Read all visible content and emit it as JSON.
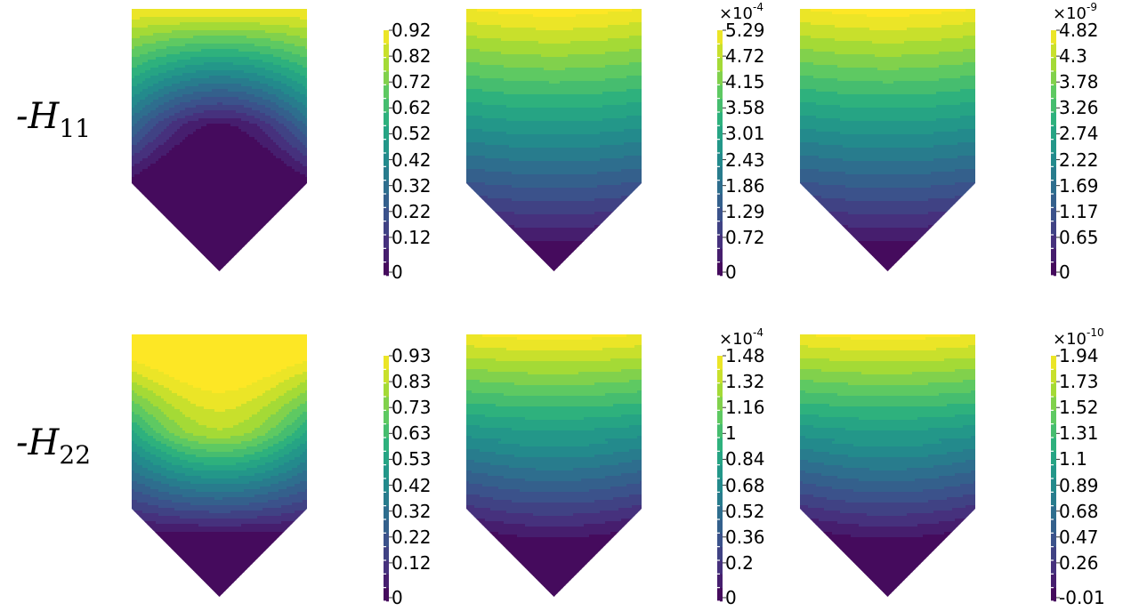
{
  "rows": [
    {
      "prefix": "-",
      "symbol": "H",
      "subscript": "11"
    },
    {
      "prefix": "-",
      "symbol": "H",
      "subscript": "22"
    }
  ],
  "colormap_colors": [
    "#440154",
    "#472d7b",
    "#3b528b",
    "#2c728e",
    "#21918c",
    "#28ae80",
    "#5ec962",
    "#addc30",
    "#fde725"
  ],
  "chart_data": [
    {
      "type": "heatmap",
      "row": 0,
      "col": 0,
      "exponent": "",
      "colorbar_ticks": [
        "0",
        "0.12",
        "0.22",
        "0.32",
        "0.42",
        "0.52",
        "0.62",
        "0.72",
        "0.82",
        "0.92"
      ],
      "range": [
        0,
        1.0
      ],
      "pattern": "dip"
    },
    {
      "type": "heatmap",
      "row": 0,
      "col": 1,
      "exponent": "-4",
      "colorbar_ticks": [
        "0",
        "0.72",
        "1.29",
        "1.86",
        "2.43",
        "3.01",
        "3.58",
        "4.15",
        "4.72",
        "5.29"
      ],
      "range": [
        0,
        5.7
      ],
      "pattern": "flat"
    },
    {
      "type": "heatmap",
      "row": 0,
      "col": 2,
      "exponent": "-9",
      "colorbar_ticks": [
        "0",
        "0.65",
        "1.17",
        "1.69",
        "2.22",
        "2.74",
        "3.26",
        "3.78",
        "4.3",
        "4.82"
      ],
      "range": [
        0,
        5.2
      ],
      "pattern": "flat"
    },
    {
      "type": "heatmap",
      "row": 1,
      "col": 0,
      "exponent": "",
      "colorbar_ticks": [
        "0",
        "0.12",
        "0.22",
        "0.32",
        "0.42",
        "0.53",
        "0.63",
        "0.73",
        "0.83",
        "0.93"
      ],
      "range": [
        0,
        1.0
      ],
      "pattern": "bump"
    },
    {
      "type": "heatmap",
      "row": 1,
      "col": 1,
      "exponent": "-4",
      "colorbar_ticks": [
        "0",
        "0.2",
        "0.36",
        "0.52",
        "0.68",
        "0.84",
        "1",
        "1.16",
        "1.32",
        "1.48"
      ],
      "range": [
        0,
        1.6
      ],
      "pattern": "flat2"
    },
    {
      "type": "heatmap",
      "row": 1,
      "col": 2,
      "exponent": "-10",
      "colorbar_ticks": [
        "-0.01",
        "0.26",
        "0.47",
        "0.68",
        "0.89",
        "1.1",
        "1.31",
        "1.52",
        "1.73",
        "1.94"
      ],
      "range": [
        -0.01,
        2.1
      ],
      "pattern": "flat2"
    }
  ]
}
